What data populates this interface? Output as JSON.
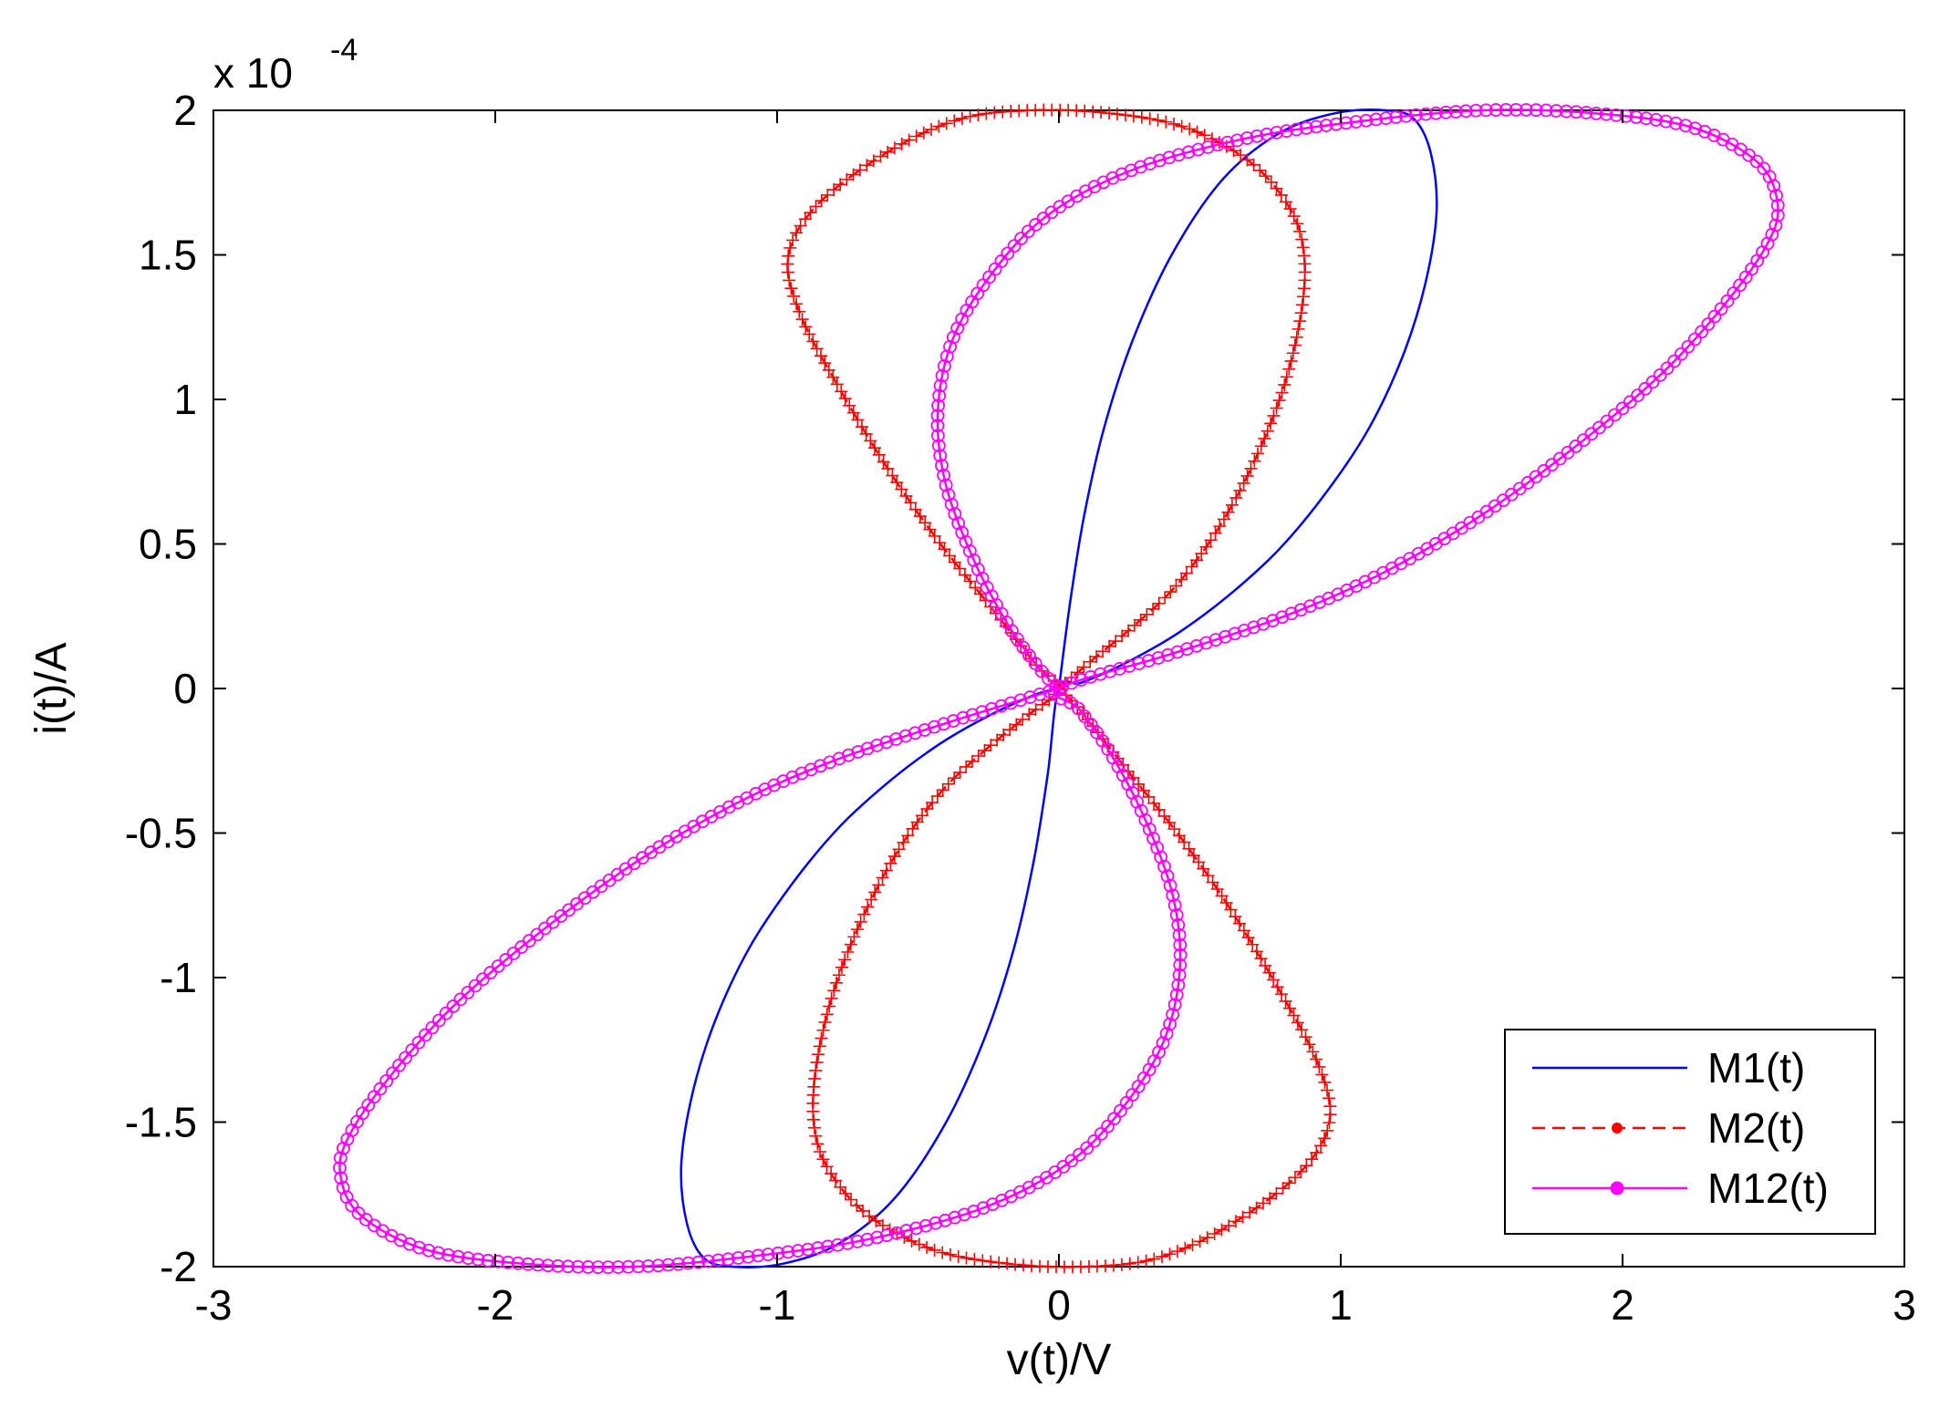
{
  "chart_data": {
    "type": "line",
    "title": "",
    "xlabel": "v(t)/V",
    "ylabel": "i(t)/A",
    "y_multiplier_label": {
      "base": "x 10",
      "exponent": "-4"
    },
    "xlim": [
      -3,
      3
    ],
    "ylim": [
      -2,
      2
    ],
    "x_ticks": [
      -3,
      -2,
      -1,
      0,
      1,
      2,
      3
    ],
    "x_tick_labels": [
      "-3",
      "-2",
      "-1",
      "0",
      "1",
      "2",
      "3"
    ],
    "y_ticks": [
      -2,
      -1.5,
      -1,
      -0.5,
      0,
      0.5,
      1,
      1.5,
      2
    ],
    "y_tick_labels": [
      "-2",
      "-1.5",
      "-1",
      "-0.5",
      "0",
      "0.5",
      "1",
      "1.5",
      "2"
    ],
    "grid": false,
    "legend_position": "bottom-right",
    "series": [
      {
        "name": "M1(t)",
        "color": "#0000ff",
        "line_style": "solid",
        "marker": "none",
        "points": [
          [
            0,
            0
          ],
          [
            0.04,
            0.3
          ],
          [
            0.09,
            0.6
          ],
          [
            0.16,
            0.9
          ],
          [
            0.26,
            1.2
          ],
          [
            0.4,
            1.5
          ],
          [
            0.58,
            1.76
          ],
          [
            0.78,
            1.92
          ],
          [
            0.98,
            1.99
          ],
          [
            1.16,
            2.0
          ],
          [
            1.26,
            1.97
          ],
          [
            1.32,
            1.85
          ],
          [
            1.34,
            1.65
          ],
          [
            1.3,
            1.4
          ],
          [
            1.22,
            1.15
          ],
          [
            1.1,
            0.9
          ],
          [
            0.95,
            0.68
          ],
          [
            0.78,
            0.48
          ],
          [
            0.6,
            0.32
          ],
          [
            0.42,
            0.19
          ],
          [
            0.24,
            0.09
          ],
          [
            0.08,
            0.02
          ],
          [
            0,
            0
          ],
          [
            -0.04,
            -0.3
          ],
          [
            -0.09,
            -0.6
          ],
          [
            -0.16,
            -0.9
          ],
          [
            -0.26,
            -1.2
          ],
          [
            -0.4,
            -1.5
          ],
          [
            -0.58,
            -1.76
          ],
          [
            -0.78,
            -1.92
          ],
          [
            -0.98,
            -1.99
          ],
          [
            -1.16,
            -2.0
          ],
          [
            -1.26,
            -1.97
          ],
          [
            -1.32,
            -1.85
          ],
          [
            -1.34,
            -1.65
          ],
          [
            -1.3,
            -1.4
          ],
          [
            -1.22,
            -1.15
          ],
          [
            -1.1,
            -0.9
          ],
          [
            -0.95,
            -0.68
          ],
          [
            -0.78,
            -0.48
          ],
          [
            -0.6,
            -0.32
          ],
          [
            -0.42,
            -0.19
          ],
          [
            -0.24,
            -0.09
          ],
          [
            -0.08,
            -0.02
          ],
          [
            0,
            0
          ]
        ]
      },
      {
        "name": "M2(t)",
        "color": "#ff0000",
        "line_style": "dashed",
        "marker": "plus",
        "points": [
          [
            0,
            0
          ],
          [
            0.12,
            0.1
          ],
          [
            0.27,
            0.22
          ],
          [
            0.42,
            0.36
          ],
          [
            0.57,
            0.56
          ],
          [
            0.7,
            0.8
          ],
          [
            0.8,
            1.05
          ],
          [
            0.86,
            1.3
          ],
          [
            0.87,
            1.5
          ],
          [
            0.82,
            1.66
          ],
          [
            0.68,
            1.82
          ],
          [
            0.45,
            1.94
          ],
          [
            0.18,
            1.99
          ],
          [
            -0.1,
            2.0
          ],
          [
            -0.35,
            1.97
          ],
          [
            -0.6,
            1.86
          ],
          [
            -0.85,
            1.68
          ],
          [
            -0.96,
            1.5
          ],
          [
            -0.92,
            1.3
          ],
          [
            -0.78,
            1.04
          ],
          [
            -0.6,
            0.75
          ],
          [
            -0.42,
            0.5
          ],
          [
            -0.24,
            0.28
          ],
          [
            -0.08,
            0.08
          ],
          [
            0,
            0
          ],
          [
            -0.12,
            -0.1
          ],
          [
            -0.27,
            -0.22
          ],
          [
            -0.42,
            -0.36
          ],
          [
            -0.57,
            -0.56
          ],
          [
            -0.7,
            -0.8
          ],
          [
            -0.8,
            -1.05
          ],
          [
            -0.86,
            -1.3
          ],
          [
            -0.87,
            -1.5
          ],
          [
            -0.82,
            -1.66
          ],
          [
            -0.68,
            -1.82
          ],
          [
            -0.45,
            -1.94
          ],
          [
            -0.18,
            -1.99
          ],
          [
            0.1,
            -2.0
          ],
          [
            0.35,
            -1.97
          ],
          [
            0.6,
            -1.86
          ],
          [
            0.85,
            -1.68
          ],
          [
            0.96,
            -1.5
          ],
          [
            0.92,
            -1.3
          ],
          [
            0.78,
            -1.04
          ],
          [
            0.6,
            -0.75
          ],
          [
            0.42,
            -0.5
          ],
          [
            0.24,
            -0.28
          ],
          [
            0.08,
            -0.08
          ],
          [
            0,
            0
          ]
        ]
      },
      {
        "name": "M12(t)",
        "color": "#ff00ff",
        "line_style": "solid",
        "marker": "circle",
        "points": [
          [
            0,
            0
          ],
          [
            -0.4,
            -0.12
          ],
          [
            -0.8,
            -0.25
          ],
          [
            -1.15,
            -0.4
          ],
          [
            -1.5,
            -0.6
          ],
          [
            -1.85,
            -0.85
          ],
          [
            -2.15,
            -1.1
          ],
          [
            -2.38,
            -1.35
          ],
          [
            -2.52,
            -1.55
          ],
          [
            -2.55,
            -1.68
          ],
          [
            -2.48,
            -1.82
          ],
          [
            -2.25,
            -1.94
          ],
          [
            -1.9,
            -1.99
          ],
          [
            -1.5,
            -2.0
          ],
          [
            -1.05,
            -1.96
          ],
          [
            -0.65,
            -1.9
          ],
          [
            -0.25,
            -1.79
          ],
          [
            0.05,
            -1.63
          ],
          [
            0.25,
            -1.42
          ],
          [
            0.38,
            -1.2
          ],
          [
            0.43,
            -0.95
          ],
          [
            0.4,
            -0.7
          ],
          [
            0.3,
            -0.44
          ],
          [
            0.18,
            -0.22
          ],
          [
            0.07,
            -0.07
          ],
          [
            0,
            0
          ],
          [
            0.4,
            0.12
          ],
          [
            0.8,
            0.25
          ],
          [
            1.15,
            0.4
          ],
          [
            1.5,
            0.6
          ],
          [
            1.85,
            0.85
          ],
          [
            2.15,
            1.1
          ],
          [
            2.38,
            1.35
          ],
          [
            2.52,
            1.55
          ],
          [
            2.55,
            1.68
          ],
          [
            2.48,
            1.82
          ],
          [
            2.25,
            1.94
          ],
          [
            1.9,
            1.99
          ],
          [
            1.5,
            2.0
          ],
          [
            1.05,
            1.96
          ],
          [
            0.65,
            1.9
          ],
          [
            0.25,
            1.79
          ],
          [
            -0.05,
            1.63
          ],
          [
            -0.25,
            1.42
          ],
          [
            -0.38,
            1.2
          ],
          [
            -0.43,
            0.95
          ],
          [
            -0.4,
            0.7
          ],
          [
            -0.3,
            0.44
          ],
          [
            -0.18,
            0.22
          ],
          [
            -0.07,
            0.07
          ],
          [
            0,
            0
          ]
        ]
      }
    ]
  }
}
